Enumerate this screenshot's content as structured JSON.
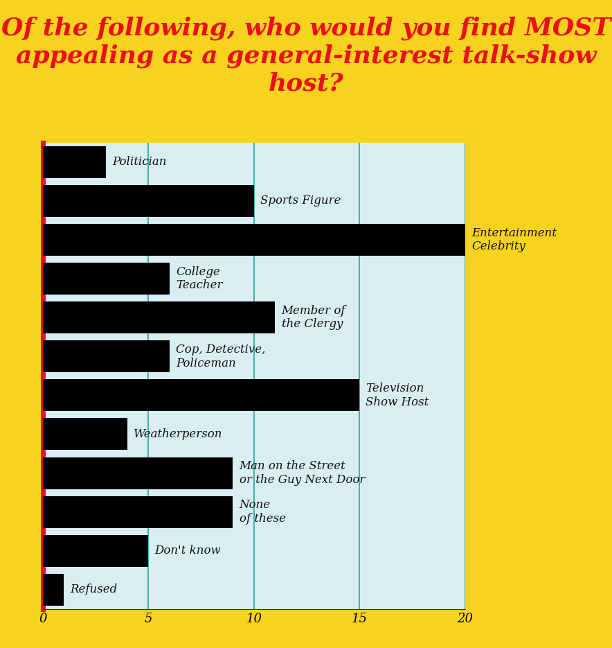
{
  "chart_data": {
    "type": "bar",
    "orientation": "horizontal",
    "title": "Of the following, who would you find MOST appealing as a general-interest talk-show host?",
    "categories": [
      "Politician",
      "Sports Figure",
      "Entertainment\nCelebrity",
      "College\nTeacher",
      "Member of\nthe Clergy",
      "Cop, Detective,\nPoliceman",
      "Television\nShow Host",
      "Weatherperson",
      "Man on the Street\nor the Guy Next Door",
      "None\nof these",
      "Don't know",
      "Refused"
    ],
    "values": [
      3,
      10,
      20,
      6,
      11,
      6,
      15,
      4,
      9,
      9,
      5,
      1
    ],
    "color": "#000000",
    "xlim": [
      0,
      20
    ],
    "xticks": [
      0,
      5,
      10,
      15,
      20
    ],
    "grid": true
  }
}
